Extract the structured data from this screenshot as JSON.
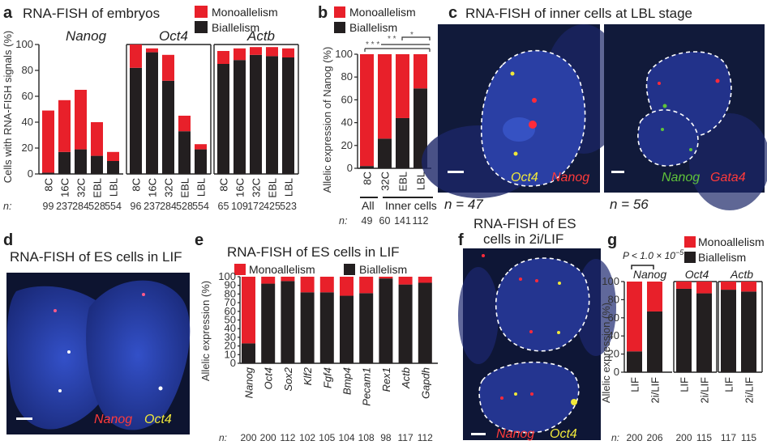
{
  "colors": {
    "mono": "#e8202a",
    "bi": "#231f20",
    "nucleus": "#2b41a8",
    "yellow": "#f0e83a",
    "green": "#5fc33a"
  },
  "panels": {
    "a": {
      "letter": "a",
      "title": "RNA-FISH of embryos",
      "legend": [
        "Monoallelism",
        "Biallelism"
      ],
      "ylabel": "Cells with RNA-FISH signals (%)",
      "n_prefix": "n:",
      "yticks": [
        "0",
        "20",
        "40",
        "60",
        "80",
        "100"
      ]
    },
    "b": {
      "letter": "b",
      "legend": [
        "Monoallelism",
        "Biallelism"
      ],
      "ylabel": "Allelic expression of Nanog (%)",
      "sig": [
        "* * *",
        "* *",
        "*"
      ],
      "group_all": "All",
      "group_inner": "Inner cells",
      "n_prefix": "n:",
      "yticks": [
        "0",
        "20",
        "40",
        "60",
        "80",
        "100"
      ]
    },
    "c": {
      "letter": "c",
      "title": "RNA-FISH of inner cells at LBL stage",
      "left_labels": [
        "Oct4",
        "Nanog"
      ],
      "right_labels": [
        "Nanog",
        "Gata4"
      ],
      "n_left": "n = 47",
      "n_right": "n = 56"
    },
    "d": {
      "letter": "d",
      "title": "RNA-FISH of ES cells in LIF",
      "labels": [
        "Nanog",
        "Oct4"
      ]
    },
    "e": {
      "letter": "e",
      "title": "RNA-FISH of ES cells in LIF",
      "legend": [
        "Monoallelism",
        "Biallelism"
      ],
      "ylabel": "Allelic expression (%)",
      "n_prefix": "n:",
      "yticks": [
        "0",
        "10",
        "20",
        "30",
        "40",
        "50",
        "60",
        "70",
        "80",
        "90",
        "100"
      ]
    },
    "f": {
      "letter": "f",
      "title_line1": "RNA-FISH of ES",
      "title_line2": "cells in 2i/LIF",
      "labels": [
        "Nanog",
        "Oct4"
      ]
    },
    "g": {
      "letter": "g",
      "legend": [
        "Monoallelism",
        "Biallelism"
      ],
      "pvalue": "P < 1.0 × 10",
      "pvalue_exp": "−5",
      "ylabel": "Allelic expression (%)",
      "n_prefix": "n:",
      "yticks": [
        "0",
        "20",
        "40",
        "60",
        "80",
        "100"
      ]
    }
  },
  "chart_data": [
    {
      "id": "a",
      "type": "bar",
      "stacked": true,
      "groups": [
        {
          "gene": "Nanog",
          "categories": [
            "8C",
            "16C",
            "32C",
            "EBL",
            "LBL"
          ],
          "n": [
            "99",
            "237",
            "284",
            "528",
            "554"
          ],
          "series": [
            {
              "name": "Biallelism",
              "values": [
                1,
                17,
                19,
                14,
                10
              ]
            },
            {
              "name": "Monoallelism",
              "values": [
                48,
                40,
                46,
                26,
                7
              ]
            }
          ]
        },
        {
          "gene": "Oct4",
          "categories": [
            "8C",
            "16C",
            "32C",
            "EBL",
            "LBL"
          ],
          "n": [
            "96",
            "237",
            "284",
            "528",
            "554"
          ],
          "series": [
            {
              "name": "Biallelism",
              "values": [
                82,
                94,
                72,
                33,
                19
              ]
            },
            {
              "name": "Monoallelism",
              "values": [
                18,
                3,
                20,
                12,
                4
              ]
            }
          ]
        },
        {
          "gene": "Actb",
          "categories": [
            "8C",
            "16C",
            "32C",
            "EBL",
            "LBL"
          ],
          "n": [
            "65",
            "109",
            "172",
            "425",
            "523"
          ],
          "series": [
            {
              "name": "Biallelism",
              "values": [
                85,
                88,
                92,
                91,
                90
              ]
            },
            {
              "name": "Monoallelism",
              "values": [
                10,
                9,
                6,
                7,
                7
              ]
            }
          ]
        }
      ],
      "ylim": [
        0,
        100
      ]
    },
    {
      "id": "b",
      "type": "bar",
      "stacked": true,
      "categories": [
        "8C",
        "32C",
        "EBL",
        "LBL"
      ],
      "n": [
        "49",
        "60",
        "141",
        "112"
      ],
      "series": [
        {
          "name": "Biallelism",
          "values": [
            2,
            26,
            44,
            70
          ]
        },
        {
          "name": "Monoallelism",
          "values": [
            98,
            74,
            56,
            30
          ]
        }
      ],
      "ylim": [
        0,
        100
      ]
    },
    {
      "id": "e",
      "type": "bar",
      "stacked": true,
      "categories": [
        "Nanog",
        "Oct4",
        "Sox2",
        "Klf2",
        "Fgf4",
        "Bmp4",
        "Pecam1",
        "Rex1",
        "Actb",
        "Gapdh"
      ],
      "n": [
        "200",
        "200",
        "112",
        "102",
        "105",
        "104",
        "108",
        "98",
        "117",
        "112"
      ],
      "series": [
        {
          "name": "Biallelism",
          "values": [
            23,
            92,
            95,
            82,
            82,
            78,
            81,
            98,
            91,
            93
          ]
        },
        {
          "name": "Monoallelism",
          "values": [
            77,
            8,
            5,
            18,
            18,
            22,
            19,
            2,
            9,
            7
          ]
        }
      ],
      "ylim": [
        0,
        100
      ]
    },
    {
      "id": "g",
      "type": "bar",
      "stacked": true,
      "groups": [
        {
          "gene": "Nanog",
          "categories": [
            "LIF",
            "2i/LIF"
          ],
          "n": [
            "200",
            "206"
          ],
          "series": [
            {
              "name": "Biallelism",
              "values": [
                23,
                67
              ]
            },
            {
              "name": "Monoallelism",
              "values": [
                77,
                33
              ]
            }
          ]
        },
        {
          "gene": "Oct4",
          "categories": [
            "LIF",
            "2i/LIF"
          ],
          "n": [
            "200",
            "115"
          ],
          "series": [
            {
              "name": "Biallelism",
              "values": [
                92,
                87
              ]
            },
            {
              "name": "Monoallelism",
              "values": [
                8,
                13
              ]
            }
          ]
        },
        {
          "gene": "Actb",
          "categories": [
            "LIF",
            "2i/LIF"
          ],
          "n": [
            "117",
            "115"
          ],
          "series": [
            {
              "name": "Biallelism",
              "values": [
                91,
                89
              ]
            },
            {
              "name": "Monoallelism",
              "values": [
                9,
                11
              ]
            }
          ]
        }
      ],
      "ylim": [
        0,
        100
      ]
    }
  ]
}
